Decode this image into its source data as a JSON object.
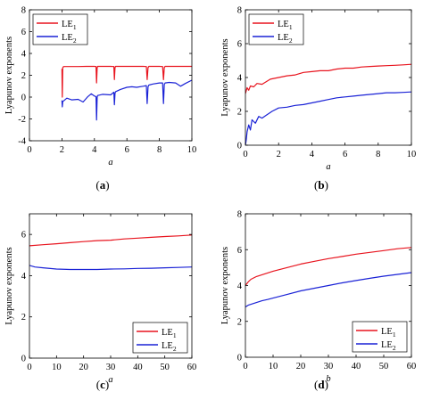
{
  "chart_data": [
    {
      "type": "line",
      "panel_label": {
        "open": "(",
        "letter": "a",
        "close": ")"
      },
      "xlabel": "a",
      "ylabel": "Lyapunov exponents",
      "xlim": [
        0,
        10
      ],
      "ylim": [
        -4,
        8
      ],
      "xticks": [
        0,
        2,
        4,
        6,
        8,
        10
      ],
      "yticks": [
        -4,
        -2,
        0,
        2,
        4,
        6,
        8
      ],
      "grid": false,
      "legend_position": "top-left",
      "series": [
        {
          "name": "LE",
          "sub": "1",
          "color": "#e8141e",
          "x": [
            2.0,
            2.02,
            2.05,
            2.08,
            2.1,
            2.5,
            3.0,
            3.5,
            4.0,
            4.1,
            4.13,
            4.17,
            4.2,
            4.5,
            5.0,
            5.2,
            5.23,
            5.27,
            5.3,
            5.6,
            6.0,
            6.5,
            7.0,
            7.2,
            7.25,
            7.3,
            7.35,
            7.6,
            8.0,
            8.2,
            8.25,
            8.3,
            8.35,
            8.6,
            9.0,
            9.5,
            10.0
          ],
          "y": [
            2.6,
            0.0,
            2.7,
            2.75,
            2.8,
            2.8,
            2.8,
            2.82,
            2.82,
            2.8,
            1.3,
            2.7,
            2.82,
            2.82,
            2.82,
            2.8,
            1.6,
            2.7,
            2.82,
            2.82,
            2.82,
            2.82,
            2.82,
            2.8,
            1.6,
            2.7,
            2.82,
            2.82,
            2.82,
            2.8,
            1.6,
            2.7,
            2.82,
            2.82,
            2.82,
            2.82,
            2.82
          ]
        },
        {
          "name": "LE",
          "sub": "2",
          "color": "#1a22d6",
          "x": [
            2.0,
            2.02,
            2.05,
            2.1,
            2.3,
            2.6,
            3.0,
            3.3,
            3.6,
            3.8,
            4.0,
            4.1,
            4.13,
            4.17,
            4.2,
            4.5,
            5.0,
            5.2,
            5.23,
            5.27,
            5.3,
            5.6,
            6.0,
            6.3,
            6.6,
            7.0,
            7.2,
            7.25,
            7.3,
            7.35,
            7.6,
            8.0,
            8.2,
            8.25,
            8.3,
            8.35,
            8.6,
            9.0,
            9.3,
            9.6,
            10.0
          ],
          "y": [
            -0.3,
            -0.9,
            -0.4,
            -0.35,
            -0.1,
            -0.25,
            -0.2,
            -0.45,
            0.05,
            0.3,
            0.1,
            0.05,
            -2.1,
            0.0,
            0.15,
            0.25,
            0.2,
            0.45,
            -0.7,
            0.35,
            0.5,
            0.7,
            0.9,
            0.95,
            0.9,
            1.0,
            1.05,
            -0.6,
            0.95,
            1.1,
            1.2,
            1.3,
            1.3,
            -0.6,
            1.15,
            1.3,
            1.35,
            1.3,
            1.0,
            1.25,
            1.55
          ]
        }
      ]
    },
    {
      "type": "line",
      "panel_label": {
        "open": "(",
        "letter": "b",
        "close": ")"
      },
      "xlabel": "a",
      "ylabel": "Lyapunov exponents",
      "xlim": [
        0,
        10
      ],
      "ylim": [
        0,
        8
      ],
      "xticks": [
        0,
        2,
        4,
        6,
        8,
        10
      ],
      "yticks": [
        0,
        2,
        4,
        6,
        8
      ],
      "grid": false,
      "legend_position": "top-left",
      "series": [
        {
          "name": "LE",
          "sub": "1",
          "color": "#e8141e",
          "x": [
            0.0,
            0.1,
            0.2,
            0.3,
            0.5,
            0.7,
            1.0,
            1.5,
            2.0,
            2.5,
            3.0,
            3.5,
            4.0,
            4.5,
            5.0,
            5.5,
            6.0,
            6.5,
            7.0,
            7.5,
            8.0,
            8.5,
            9.0,
            9.5,
            10.0
          ],
          "y": [
            3.05,
            3.4,
            3.25,
            3.5,
            3.45,
            3.65,
            3.6,
            3.9,
            4.0,
            4.1,
            4.15,
            4.3,
            4.35,
            4.4,
            4.4,
            4.5,
            4.55,
            4.55,
            4.62,
            4.65,
            4.68,
            4.7,
            4.72,
            4.75,
            4.78
          ]
        },
        {
          "name": "LE",
          "sub": "2",
          "color": "#1a22d6",
          "x": [
            0.0,
            0.05,
            0.1,
            0.2,
            0.3,
            0.4,
            0.6,
            0.8,
            1.0,
            1.3,
            1.6,
            2.0,
            2.5,
            3.0,
            3.5,
            4.0,
            4.5,
            5.0,
            5.5,
            6.0,
            6.5,
            7.0,
            7.5,
            8.0,
            8.5,
            9.0,
            9.5,
            10.0
          ],
          "y": [
            0.0,
            0.3,
            0.8,
            1.2,
            0.9,
            1.5,
            1.3,
            1.7,
            1.6,
            1.8,
            2.0,
            2.2,
            2.25,
            2.35,
            2.4,
            2.5,
            2.6,
            2.7,
            2.8,
            2.85,
            2.9,
            2.95,
            3.0,
            3.05,
            3.1,
            3.1,
            3.12,
            3.15
          ]
        }
      ]
    },
    {
      "type": "line",
      "panel_label": {
        "open": "(",
        "letter": "c",
        "close": ")"
      },
      "xlabel": "a",
      "ylabel": "Lyapunov exponents",
      "xlim": [
        0,
        60
      ],
      "ylim": [
        0,
        7
      ],
      "xticks": [
        0,
        10,
        20,
        30,
        40,
        50,
        60
      ],
      "yticks": [
        0,
        2,
        4,
        6
      ],
      "grid": false,
      "legend_position": "bottom-right",
      "series": [
        {
          "name": "LE",
          "sub": "1",
          "color": "#e8141e",
          "x": [
            0,
            5,
            10,
            15,
            20,
            25,
            30,
            35,
            40,
            45,
            50,
            55,
            60
          ],
          "y": [
            5.45,
            5.5,
            5.55,
            5.6,
            5.65,
            5.7,
            5.72,
            5.78,
            5.82,
            5.86,
            5.9,
            5.93,
            5.97
          ]
        },
        {
          "name": "LE",
          "sub": "2",
          "color": "#1a22d6",
          "x": [
            0,
            2,
            5,
            10,
            15,
            20,
            25,
            30,
            35,
            40,
            45,
            50,
            55,
            60
          ],
          "y": [
            4.5,
            4.42,
            4.38,
            4.32,
            4.3,
            4.3,
            4.3,
            4.32,
            4.33,
            4.35,
            4.36,
            4.38,
            4.4,
            4.42
          ]
        }
      ]
    },
    {
      "type": "line",
      "panel_label": {
        "open": "(",
        "letter": "d",
        "close": ")"
      },
      "xlabel": "b",
      "ylabel": "Lyapunov exponents",
      "xlim": [
        0,
        60
      ],
      "ylim": [
        0,
        8
      ],
      "xticks": [
        0,
        10,
        20,
        30,
        40,
        50,
        60
      ],
      "yticks": [
        0,
        2,
        4,
        6,
        8
      ],
      "grid": false,
      "legend_position": "bottom-right",
      "series": [
        {
          "name": "LE",
          "sub": "1",
          "color": "#e8141e",
          "x": [
            0,
            1,
            2,
            4,
            6,
            8,
            10,
            15,
            20,
            25,
            30,
            35,
            40,
            45,
            50,
            55,
            60
          ],
          "y": [
            4.0,
            4.2,
            4.35,
            4.5,
            4.6,
            4.7,
            4.8,
            5.0,
            5.2,
            5.35,
            5.5,
            5.62,
            5.75,
            5.85,
            5.95,
            6.05,
            6.12
          ]
        },
        {
          "name": "LE",
          "sub": "2",
          "color": "#1a22d6",
          "x": [
            0,
            1,
            2,
            4,
            6,
            8,
            10,
            15,
            20,
            25,
            30,
            35,
            40,
            45,
            50,
            55,
            60
          ],
          "y": [
            2.8,
            2.9,
            2.95,
            3.05,
            3.15,
            3.22,
            3.3,
            3.5,
            3.7,
            3.85,
            4.0,
            4.15,
            4.28,
            4.4,
            4.52,
            4.62,
            4.72
          ]
        }
      ]
    }
  ]
}
